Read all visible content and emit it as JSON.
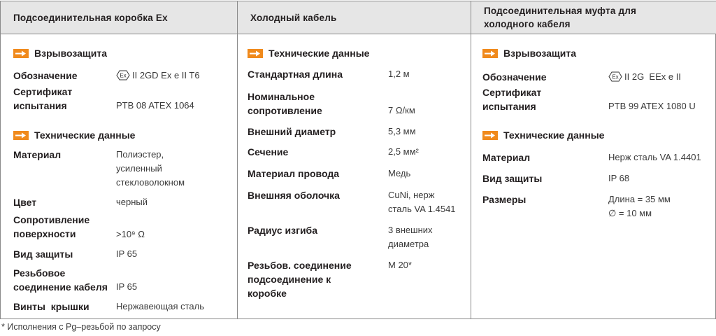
{
  "columns": [
    {
      "title": "Подсоединительная коробка  Ex",
      "sections": [
        {
          "title": "Взрывозащита",
          "rows": [
            {
              "label": "Обозначение",
              "value": "II 2GD Ex e II T6",
              "ex_icon": true
            },
            {
              "label": "Сертификат\nиспытания",
              "value": "PTB 08 ATEX 1064"
            }
          ]
        },
        {
          "title": "Технические данные",
          "rows": [
            {
              "label": "Материал",
              "value": "Полиэстер,\nусиленный\nстекловолокном"
            },
            {
              "label": "Цвет",
              "value": "черный"
            },
            {
              "label": "Сопротивление\nповерхности",
              "value": ">10⁹ Ω"
            },
            {
              "label": "Вид защиты",
              "value": "IP 65"
            },
            {
              "label": "Резьбовое\nсоединение кабеля",
              "value": "IP 65"
            },
            {
              "label": "Винты  крышки",
              "value": "Нержавеющая сталь"
            }
          ]
        }
      ]
    },
    {
      "title": "Холодный кабель",
      "sections": [
        {
          "title": "Технические данные",
          "rows": [
            {
              "label": "Стандартная длина",
              "value": "1,2 м"
            },
            {
              "label": "Номинальное\nсопротивление",
              "value": "7 Ω/км"
            },
            {
              "label": "Внешний диаметр",
              "value": "5,3 мм"
            },
            {
              "label": "Сечение",
              "value": "2,5 мм²"
            },
            {
              "label": "Материал провода",
              "value": "Медь"
            },
            {
              "label": "Внешняя оболочка",
              "value": "CuNi, нерж\nсталь VA 1.4541"
            },
            {
              "label": "Радиус изгиба",
              "value": "3 внешних\nдиаметра"
            },
            {
              "label": "Резьбов. соединение\nподсоединение к\nкоробке",
              "value": "M 20*"
            }
          ]
        }
      ]
    },
    {
      "title": "Подсоединительная муфта для\nхолодного кабеля",
      "sections": [
        {
          "title": "Взрывозащита",
          "rows": [
            {
              "label": "Обозначение",
              "value": "II 2G  EEx e II",
              "ex_icon": true
            },
            {
              "label": "Сертификат\nиспытания",
              "value": "PTB 99 ATEX 1080 U"
            }
          ]
        },
        {
          "title": "Технические данные",
          "rows": [
            {
              "label": "Материал",
              "value": "Нерж сталь VA 1.4401"
            },
            {
              "label": "Вид защиты",
              "value": "IP 68"
            },
            {
              "label": "Размеры",
              "value": "Длина = 35 мм\n∅ = 10 мм"
            }
          ]
        }
      ]
    }
  ],
  "footnote": "* Исполнения с Pg–резьбой по запросу",
  "colors": {
    "accent": "#f08a1c",
    "header_bg": "#e6e6e6",
    "border": "#8a8a8a"
  }
}
